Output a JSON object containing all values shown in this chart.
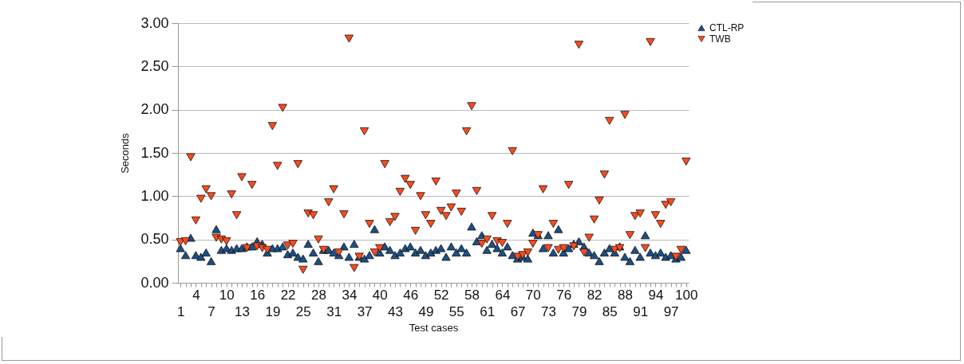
{
  "chart_data": {
    "type": "scatter",
    "xlabel": "Test cases",
    "ylabel": "Seconds",
    "categories": [
      "1",
      null,
      null,
      "4",
      null,
      null,
      "7",
      null,
      null,
      "10",
      null,
      null,
      "13",
      null,
      null,
      "16",
      null,
      null,
      "19",
      null,
      null,
      "22",
      null,
      null,
      "25",
      null,
      null,
      "28",
      null,
      null,
      "31",
      null,
      null,
      "34",
      null,
      null,
      "37",
      null,
      null,
      "40",
      null,
      null,
      "43",
      null,
      null,
      "46",
      null,
      null,
      "49",
      null,
      null,
      "52",
      null,
      null,
      "55",
      null,
      null,
      "58",
      null,
      null,
      "61",
      null,
      null,
      "64",
      null,
      null,
      "67",
      null,
      null,
      "70",
      null,
      null,
      "73",
      null,
      null,
      "76",
      null,
      null,
      "79",
      null,
      null,
      "82",
      null,
      null,
      "85",
      null,
      null,
      "88",
      null,
      null,
      "91",
      null,
      null,
      "94",
      null,
      null,
      "97",
      null,
      null,
      "100"
    ],
    "ylim": [
      0,
      3
    ],
    "yticks": [
      {
        "value": 0,
        "label": "0.00"
      },
      {
        "value": 0.5,
        "label": "0.50"
      },
      {
        "value": 1,
        "label": "1.00"
      },
      {
        "value": 1.5,
        "label": "1.50"
      },
      {
        "value": 2,
        "label": "2.00"
      },
      {
        "value": 2.5,
        "label": "2.50"
      },
      {
        "value": 3,
        "label": "3.00"
      }
    ],
    "grid": "y",
    "legend": "right",
    "series": [
      {
        "name": "CTL-RP",
        "color": "#1c4f86",
        "marker": "triangle",
        "values": [
          0.4,
          0.32,
          0.52,
          0.32,
          0.3,
          0.35,
          0.25,
          0.62,
          0.38,
          0.4,
          0.38,
          0.4,
          0.4,
          0.42,
          0.42,
          0.48,
          0.45,
          0.35,
          0.4,
          0.4,
          0.42,
          0.33,
          0.35,
          0.3,
          0.28,
          0.45,
          0.35,
          0.25,
          0.38,
          0.38,
          0.35,
          0.32,
          0.42,
          0.3,
          0.45,
          0.3,
          0.28,
          0.32,
          0.62,
          0.35,
          0.42,
          0.38,
          0.32,
          0.35,
          0.4,
          0.42,
          0.35,
          0.38,
          0.32,
          0.35,
          0.38,
          0.4,
          0.3,
          0.42,
          0.35,
          0.4,
          0.35,
          0.65,
          0.48,
          0.55,
          0.38,
          0.45,
          0.4,
          0.35,
          0.42,
          0.32,
          0.28,
          0.3,
          0.28,
          0.58,
          0.55,
          0.4,
          0.55,
          0.35,
          0.62,
          0.35,
          0.4,
          0.45,
          0.48,
          0.42,
          0.35,
          0.32,
          0.25,
          0.35,
          0.4,
          0.35,
          0.42,
          0.3,
          0.25,
          0.38,
          0.3,
          0.55,
          0.35,
          0.32,
          0.35,
          0.3,
          0.32,
          0.28,
          0.3,
          0.38
        ]
      },
      {
        "name": "TWB",
        "color": "#ff4a1c",
        "marker": "triangle-down",
        "values": [
          0.47,
          0.48,
          1.45,
          0.72,
          0.97,
          1.08,
          1.0,
          0.52,
          0.5,
          0.48,
          1.02,
          0.78,
          1.22,
          0.4,
          1.13,
          0.42,
          0.4,
          0.38,
          1.81,
          1.35,
          2.02,
          0.43,
          0.45,
          1.37,
          0.15,
          0.8,
          0.78,
          0.5,
          0.38,
          0.93,
          1.08,
          0.35,
          0.79,
          2.82,
          0.17,
          0.3,
          1.75,
          0.68,
          0.35,
          0.4,
          1.37,
          0.7,
          0.76,
          1.05,
          1.2,
          1.13,
          0.6,
          1.0,
          0.78,
          0.68,
          1.17,
          0.83,
          0.77,
          0.87,
          1.03,
          0.82,
          1.75,
          2.04,
          1.06,
          0.45,
          0.5,
          0.77,
          0.48,
          0.46,
          0.68,
          1.52,
          0.3,
          0.32,
          0.35,
          0.45,
          0.55,
          1.08,
          0.4,
          0.68,
          0.38,
          0.4,
          1.13,
          0.42,
          2.75,
          0.35,
          0.52,
          0.73,
          0.95,
          1.25,
          1.87,
          0.38,
          0.4,
          1.94,
          0.55,
          0.77,
          0.8,
          0.4,
          2.78,
          0.78,
          0.68,
          0.9,
          0.93,
          0.3,
          0.38,
          1.4
        ]
      }
    ]
  }
}
